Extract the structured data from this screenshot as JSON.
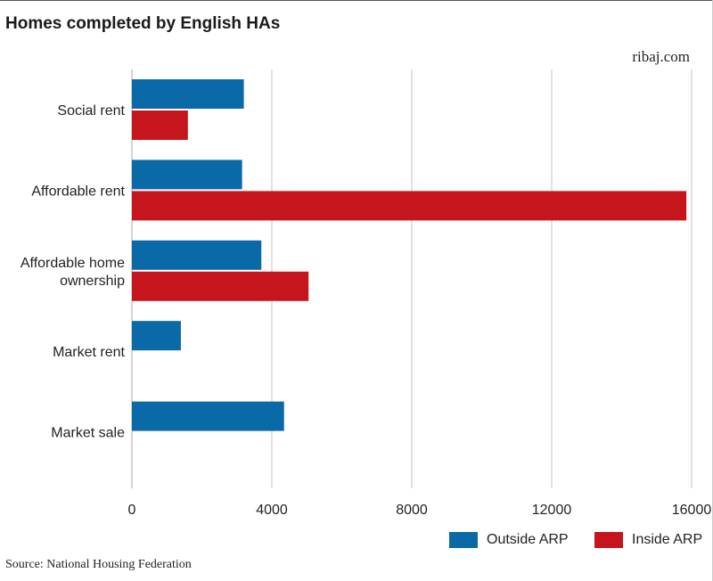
{
  "header": {
    "title": "Homes completed by English HAs",
    "brand": "ribaj.com"
  },
  "footer": {
    "source": "Source: National Housing Federation"
  },
  "chart_data": {
    "type": "bar",
    "orientation": "horizontal",
    "title": "Homes completed by English HAs",
    "xlabel": "",
    "ylabel": "",
    "xlim": [
      0,
      16000
    ],
    "x_ticks": [
      "0",
      "4000",
      "8000",
      "12000",
      "16000"
    ],
    "categories": [
      "Social rent",
      "Affordable rent",
      "Affordable home ownership",
      "Market rent",
      "Market sale"
    ],
    "series": [
      {
        "name": "Outside ARP",
        "color": "#0a6aa8",
        "values": [
          3200,
          3150,
          3700,
          1400,
          4350
        ]
      },
      {
        "name": "Inside ARP",
        "color": "#c4161c",
        "values": [
          1600,
          15850,
          5050,
          null,
          null
        ]
      }
    ],
    "grid": true,
    "legend_position": "bottom-right"
  }
}
